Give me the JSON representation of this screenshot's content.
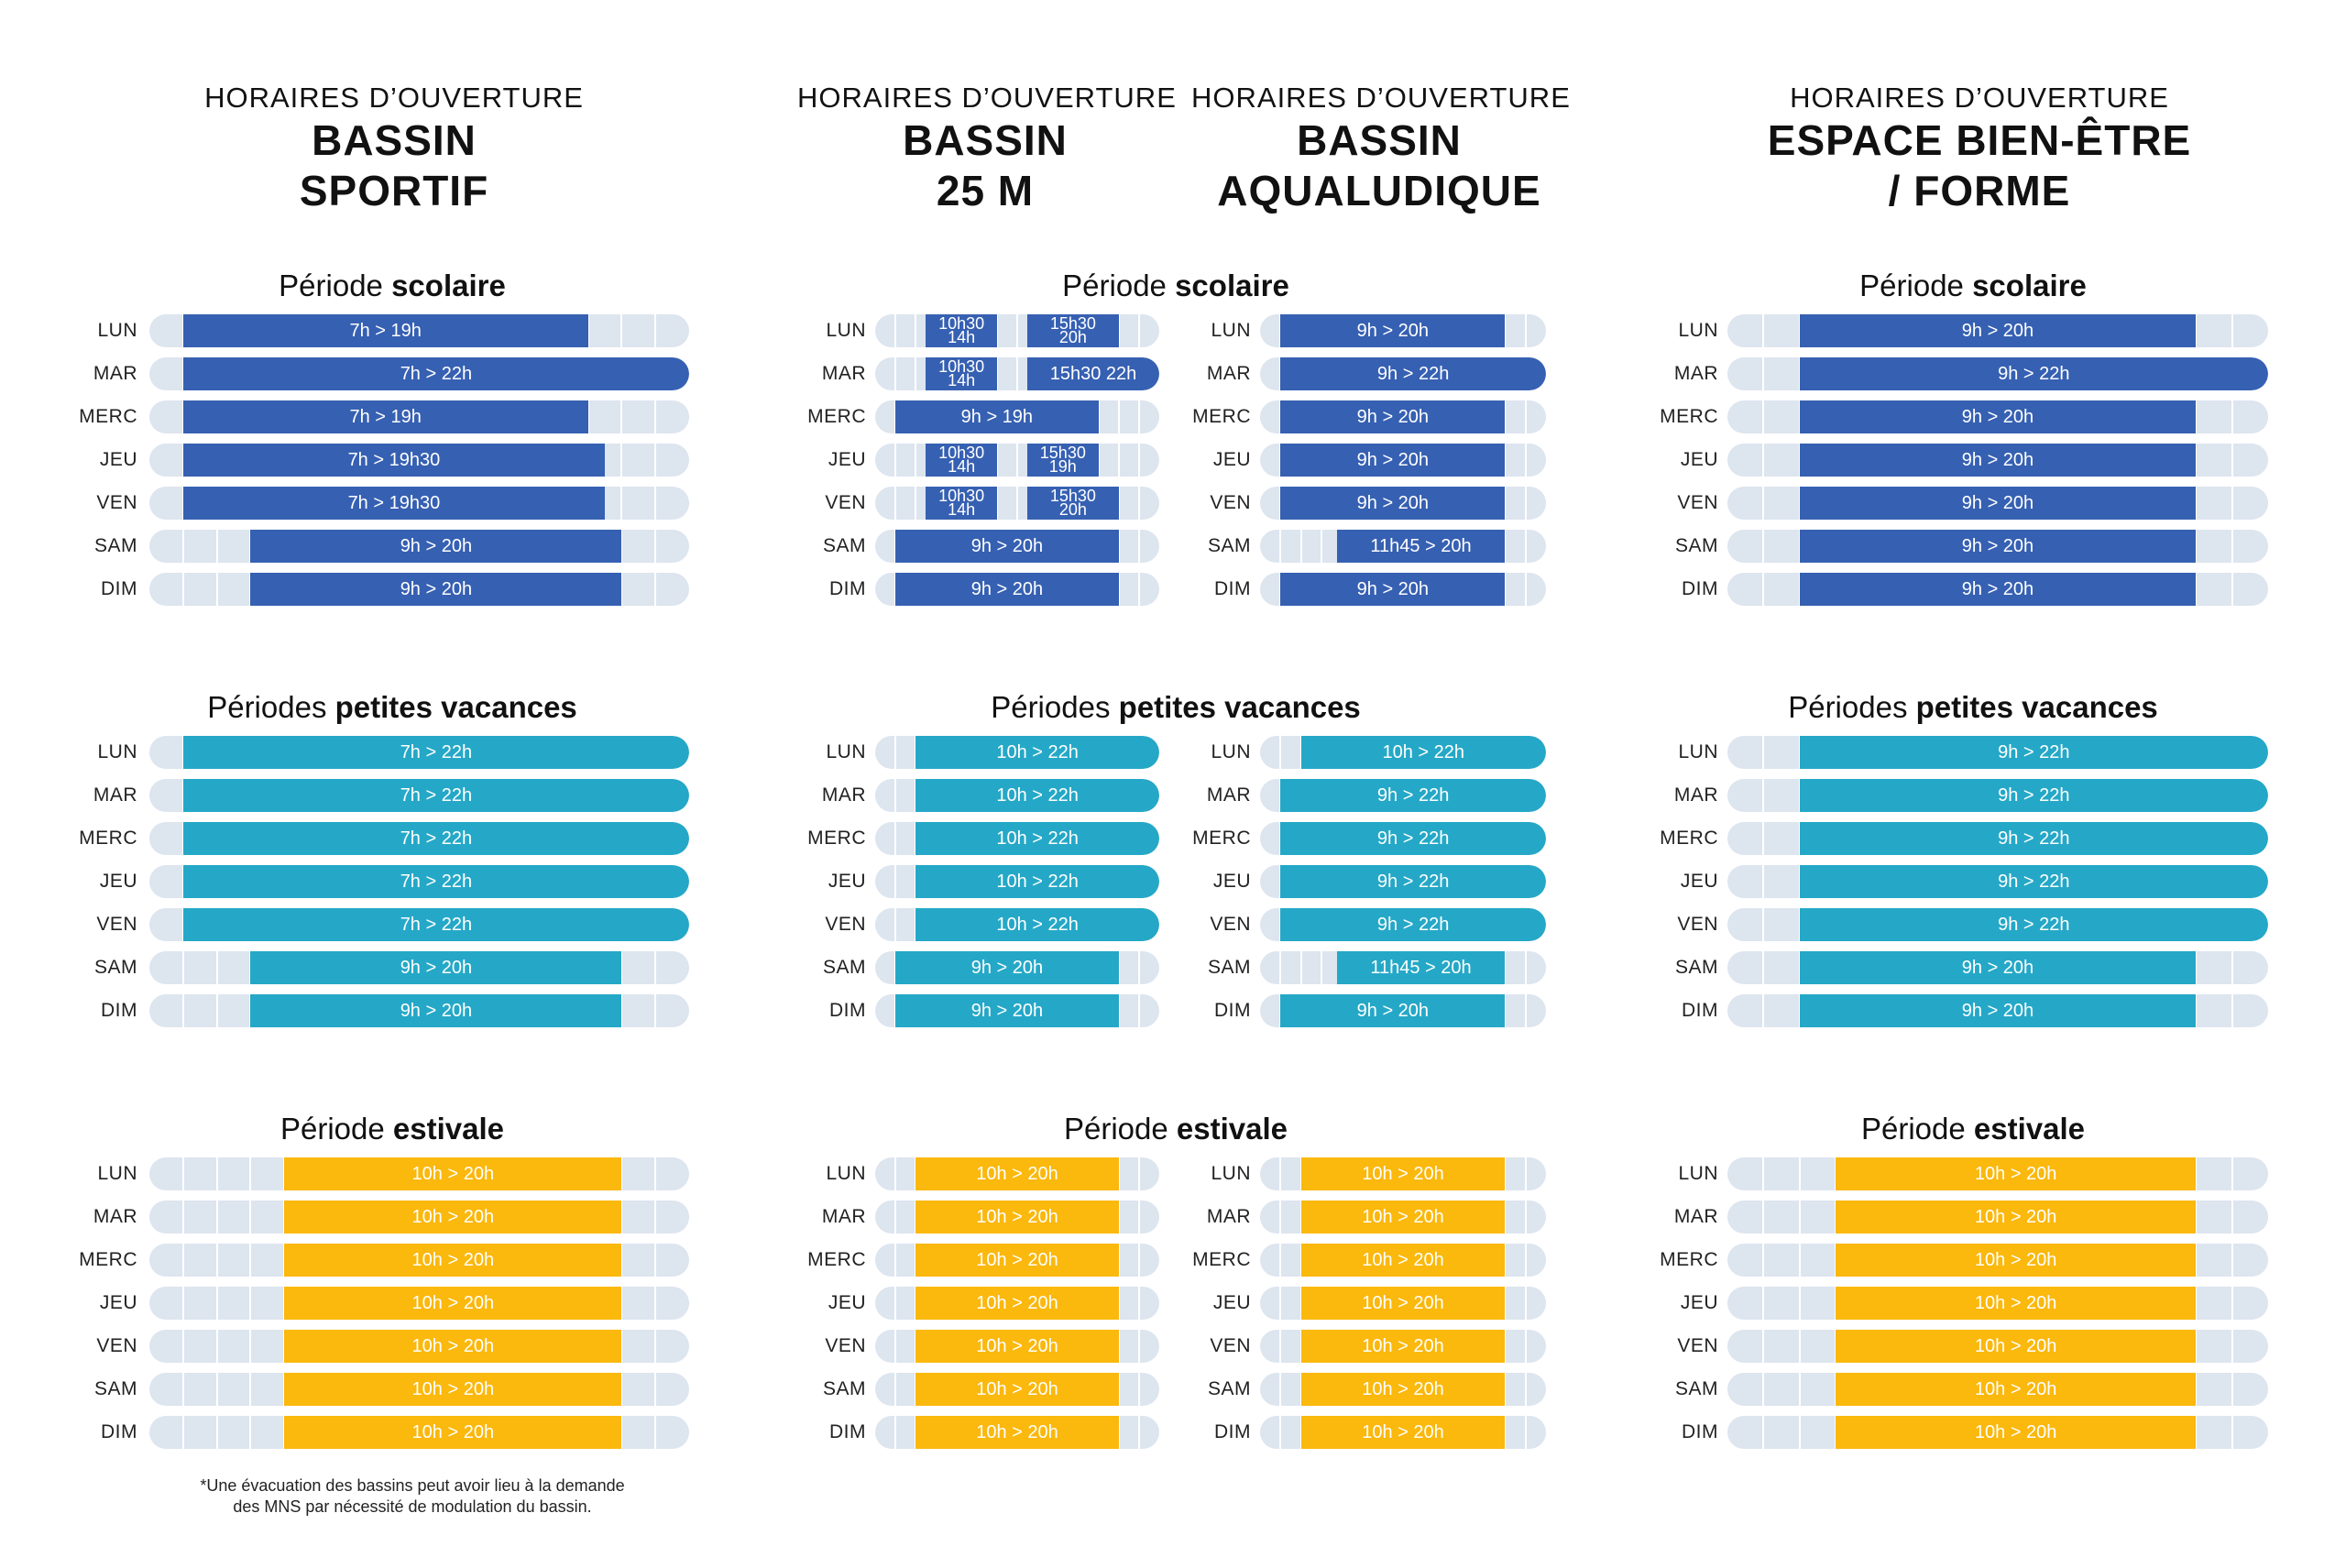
{
  "colors": {
    "scolaire": "#3660b2",
    "vacances": "#25a8c7",
    "estivale": "#fbb80d",
    "track": "#dde5ef"
  },
  "headers": [
    {
      "pre": "HORAIRES D’OUVERTURE",
      "title1": "BASSIN",
      "title2": "SPORTIF"
    },
    {
      "pre": "HORAIRES D’OUVERTURE",
      "title1": "BASSIN",
      "title2": "25 M"
    },
    {
      "pre": "HORAIRES D’OUVERTURE",
      "title1": "BASSIN",
      "title2": "AQUALUDIQUE"
    },
    {
      "pre": "HORAIRES D’OUVERTURE",
      "title1": "ESPACE BIEN-ÊTRE",
      "title2": "/ FORME"
    }
  ],
  "periods": [
    {
      "pre": "Période ",
      "bold": "scolaire"
    },
    {
      "pre": "Périodes ",
      "bold": "petites vacances"
    },
    {
      "pre": "Période ",
      "bold": "estivale"
    }
  ],
  "days": [
    "LUN",
    "MAR",
    "MERC",
    "JEU",
    "VEN",
    "SAM",
    "DIM"
  ],
  "schedule": {
    "sportif": [
      [
        {
          "s": 7,
          "e": 19,
          "t": "7h > 19h"
        },
        {
          "s": 7,
          "e": 22,
          "t": "7h > 22h"
        },
        {
          "s": 7,
          "e": 19,
          "t": "7h > 19h"
        },
        {
          "s": 7,
          "e": 19.5,
          "t": "7h > 19h30"
        },
        {
          "s": 7,
          "e": 19.5,
          "t": "7h > 19h30"
        },
        {
          "s": 9,
          "e": 20,
          "t": "9h > 20h"
        },
        {
          "s": 9,
          "e": 20,
          "t": "9h > 20h"
        }
      ],
      [
        {
          "s": 7,
          "e": 22,
          "t": "7h > 22h"
        },
        {
          "s": 7,
          "e": 22,
          "t": "7h > 22h"
        },
        {
          "s": 7,
          "e": 22,
          "t": "7h > 22h"
        },
        {
          "s": 7,
          "e": 22,
          "t": "7h > 22h"
        },
        {
          "s": 7,
          "e": 22,
          "t": "7h > 22h"
        },
        {
          "s": 9,
          "e": 20,
          "t": "9h > 20h"
        },
        {
          "s": 9,
          "e": 20,
          "t": "9h > 20h"
        }
      ],
      [
        {
          "s": 10,
          "e": 20,
          "t": "10h > 20h"
        },
        {
          "s": 10,
          "e": 20,
          "t": "10h > 20h"
        },
        {
          "s": 10,
          "e": 20,
          "t": "10h > 20h"
        },
        {
          "s": 10,
          "e": 20,
          "t": "10h > 20h"
        },
        {
          "s": 10,
          "e": 20,
          "t": "10h > 20h"
        },
        {
          "s": 10,
          "e": 20,
          "t": "10h > 20h"
        },
        {
          "s": 10,
          "e": 20,
          "t": "10h > 20h"
        }
      ]
    ],
    "b25": [
      [
        [
          {
            "s": 10.5,
            "e": 14,
            "t1": "10h30",
            "t2": "14h"
          },
          {
            "s": 15.5,
            "e": 20,
            "t1": "15h30",
            "t2": "20h"
          }
        ],
        [
          {
            "s": 10.5,
            "e": 14,
            "t1": "10h30",
            "t2": "14h"
          },
          {
            "s": 15.5,
            "e": 22,
            "t": "15h30 22h"
          }
        ],
        [
          {
            "s": 9,
            "e": 19,
            "t": "9h > 19h"
          }
        ],
        [
          {
            "s": 10.5,
            "e": 14,
            "t1": "10h30",
            "t2": "14h"
          },
          {
            "s": 15.5,
            "e": 19,
            "t1": "15h30",
            "t2": "19h"
          }
        ],
        [
          {
            "s": 10.5,
            "e": 14,
            "t1": "10h30",
            "t2": "14h"
          },
          {
            "s": 15.5,
            "e": 20,
            "t1": "15h30",
            "t2": "20h"
          }
        ],
        [
          {
            "s": 9,
            "e": 20,
            "t": "9h > 20h"
          }
        ],
        [
          {
            "s": 9,
            "e": 20,
            "t": "9h > 20h"
          }
        ]
      ],
      [
        [
          {
            "s": 10,
            "e": 22,
            "t": "10h > 22h"
          }
        ],
        [
          {
            "s": 10,
            "e": 22,
            "t": "10h > 22h"
          }
        ],
        [
          {
            "s": 10,
            "e": 22,
            "t": "10h > 22h"
          }
        ],
        [
          {
            "s": 10,
            "e": 22,
            "t": "10h > 22h"
          }
        ],
        [
          {
            "s": 10,
            "e": 22,
            "t": "10h > 22h"
          }
        ],
        [
          {
            "s": 9,
            "e": 20,
            "t": "9h > 20h"
          }
        ],
        [
          {
            "s": 9,
            "e": 20,
            "t": "9h > 20h"
          }
        ]
      ],
      [
        [
          {
            "s": 10,
            "e": 20,
            "t": "10h > 20h"
          }
        ],
        [
          {
            "s": 10,
            "e": 20,
            "t": "10h > 20h"
          }
        ],
        [
          {
            "s": 10,
            "e": 20,
            "t": "10h > 20h"
          }
        ],
        [
          {
            "s": 10,
            "e": 20,
            "t": "10h > 20h"
          }
        ],
        [
          {
            "s": 10,
            "e": 20,
            "t": "10h > 20h"
          }
        ],
        [
          {
            "s": 10,
            "e": 20,
            "t": "10h > 20h"
          }
        ],
        [
          {
            "s": 10,
            "e": 20,
            "t": "10h > 20h"
          }
        ]
      ]
    ],
    "aqua": [
      [
        {
          "s": 9,
          "e": 20,
          "t": "9h > 20h"
        },
        {
          "s": 9,
          "e": 22,
          "t": "9h > 22h"
        },
        {
          "s": 9,
          "e": 20,
          "t": "9h > 20h"
        },
        {
          "s": 9,
          "e": 20,
          "t": "9h > 20h"
        },
        {
          "s": 9,
          "e": 20,
          "t": "9h > 20h"
        },
        {
          "s": 11.75,
          "e": 20,
          "t": "11h45 > 20h"
        },
        {
          "s": 9,
          "e": 20,
          "t": "9h > 20h"
        }
      ],
      [
        {
          "s": 10,
          "e": 22,
          "t": "10h > 22h"
        },
        {
          "s": 9,
          "e": 22,
          "t": "9h > 22h"
        },
        {
          "s": 9,
          "e": 22,
          "t": "9h > 22h"
        },
        {
          "s": 9,
          "e": 22,
          "t": "9h > 22h"
        },
        {
          "s": 9,
          "e": 22,
          "t": "9h > 22h"
        },
        {
          "s": 11.75,
          "e": 20,
          "t": "11h45 > 20h"
        },
        {
          "s": 9,
          "e": 20,
          "t": "9h > 20h"
        }
      ],
      [
        {
          "s": 10,
          "e": 20,
          "t": "10h > 20h"
        },
        {
          "s": 10,
          "e": 20,
          "t": "10h > 20h"
        },
        {
          "s": 10,
          "e": 20,
          "t": "10h > 20h"
        },
        {
          "s": 10,
          "e": 20,
          "t": "10h > 20h"
        },
        {
          "s": 10,
          "e": 20,
          "t": "10h > 20h"
        },
        {
          "s": 10,
          "e": 20,
          "t": "10h > 20h"
        },
        {
          "s": 10,
          "e": 20,
          "t": "10h > 20h"
        }
      ]
    ],
    "bienetre": [
      [
        {
          "s": 9,
          "e": 20,
          "t": "9h > 20h"
        },
        {
          "s": 9,
          "e": 22,
          "t": "9h > 22h"
        },
        {
          "s": 9,
          "e": 20,
          "t": "9h > 20h"
        },
        {
          "s": 9,
          "e": 20,
          "t": "9h > 20h"
        },
        {
          "s": 9,
          "e": 20,
          "t": "9h > 20h"
        },
        {
          "s": 9,
          "e": 20,
          "t": "9h > 20h"
        },
        {
          "s": 9,
          "e": 20,
          "t": "9h > 20h"
        }
      ],
      [
        {
          "s": 9,
          "e": 22,
          "t": "9h > 22h"
        },
        {
          "s": 9,
          "e": 22,
          "t": "9h > 22h"
        },
        {
          "s": 9,
          "e": 22,
          "t": "9h > 22h"
        },
        {
          "s": 9,
          "e": 22,
          "t": "9h > 22h"
        },
        {
          "s": 9,
          "e": 22,
          "t": "9h > 22h"
        },
        {
          "s": 9,
          "e": 20,
          "t": "9h > 20h"
        },
        {
          "s": 9,
          "e": 20,
          "t": "9h > 20h"
        }
      ],
      [
        {
          "s": 10,
          "e": 20,
          "t": "10h > 20h"
        },
        {
          "s": 10,
          "e": 20,
          "t": "10h > 20h"
        },
        {
          "s": 10,
          "e": 20,
          "t": "10h > 20h"
        },
        {
          "s": 10,
          "e": 20,
          "t": "10h > 20h"
        },
        {
          "s": 10,
          "e": 20,
          "t": "10h > 20h"
        },
        {
          "s": 10,
          "e": 20,
          "t": "10h > 20h"
        },
        {
          "s": 10,
          "e": 20,
          "t": "10h > 20h"
        }
      ]
    ]
  },
  "note": {
    "line1": "*Une évacuation des bassins peut avoir lieu à la demande",
    "line2": "des MNS par nécessité de modulation du bassin."
  }
}
